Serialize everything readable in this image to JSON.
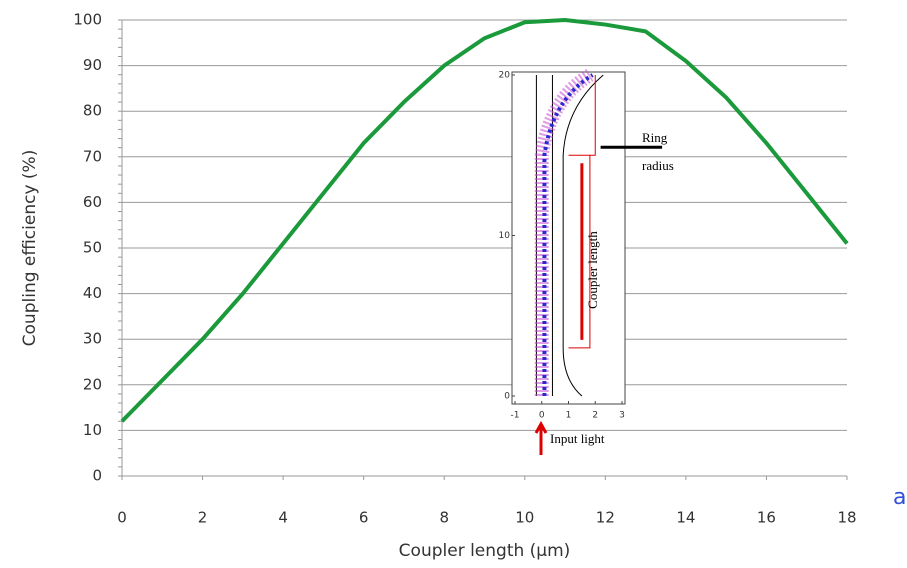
{
  "chart_data": [
    {
      "type": "line",
      "x": [
        0,
        1,
        2,
        3,
        4,
        5,
        6,
        7,
        8,
        9,
        10,
        11,
        12,
        13,
        14,
        15,
        16,
        17,
        18
      ],
      "values": [
        12,
        21,
        30,
        40,
        51,
        62,
        73,
        82,
        90,
        96,
        99.5,
        100,
        99,
        97.5,
        91,
        83,
        73,
        62,
        51
      ],
      "color": "#1a9a3a",
      "xlim": [
        0,
        18
      ],
      "xticks": [
        0,
        2,
        4,
        6,
        8,
        10,
        12,
        14,
        16,
        18
      ],
      "ylim": [
        0,
        100
      ],
      "yticks": [
        0,
        10,
        20,
        30,
        40,
        50,
        60,
        70,
        80,
        90,
        100
      ],
      "xlabel": "Coupler length (µm)",
      "ylabel": "Coupling efficiency (%)",
      "grid": true,
      "annotation": "a"
    },
    {
      "type": "inset",
      "xlim": [
        -1,
        3
      ],
      "xticks": [
        -1,
        0,
        1,
        2,
        3
      ],
      "ylim": [
        0,
        20
      ],
      "yticks": [
        0,
        10,
        20
      ],
      "annotations": [
        "Ring",
        "radius",
        "Coupler length",
        "Input light"
      ]
    }
  ]
}
